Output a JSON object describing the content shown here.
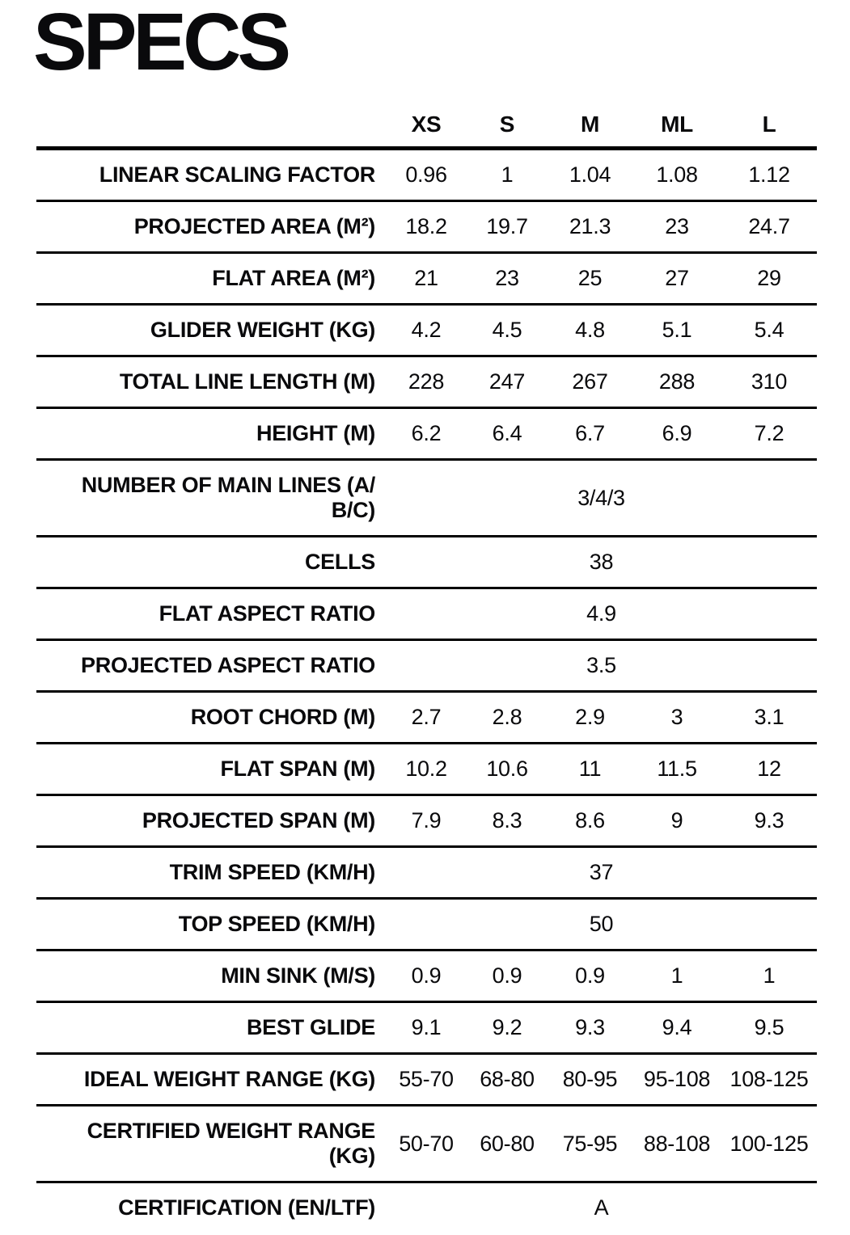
{
  "title": "SPECS",
  "colors": {
    "text": "#0a0a0c",
    "rule": "#000000",
    "background": "#ffffff"
  },
  "table": {
    "columns": [
      "XS",
      "S",
      "M",
      "ML",
      "L"
    ],
    "rows": [
      {
        "label": "LINEAR SCALING FACTOR",
        "values": [
          "0.96",
          "1",
          "1.04",
          "1.08",
          "1.12"
        ]
      },
      {
        "label": "PROJECTED AREA (M²)",
        "values": [
          "18.2",
          "19.7",
          "21.3",
          "23",
          "24.7"
        ]
      },
      {
        "label": "FLAT AREA (M²)",
        "values": [
          "21",
          "23",
          "25",
          "27",
          "29"
        ]
      },
      {
        "label": "GLIDER WEIGHT (KG)",
        "values": [
          "4.2",
          "4.5",
          "4.8",
          "5.1",
          "5.4"
        ]
      },
      {
        "label": "TOTAL LINE LENGTH (M)",
        "values": [
          "228",
          "247",
          "267",
          "288",
          "310"
        ]
      },
      {
        "label": "HEIGHT (M)",
        "values": [
          "6.2",
          "6.4",
          "6.7",
          "6.9",
          "7.2"
        ]
      },
      {
        "label": "NUMBER OF MAIN LINES (A/\nB/C)",
        "span_value": "3/4/3"
      },
      {
        "label": "CELLS",
        "span_value": "38"
      },
      {
        "label": "FLAT ASPECT RATIO",
        "span_value": "4.9"
      },
      {
        "label": "PROJECTED ASPECT RATIO",
        "span_value": "3.5"
      },
      {
        "label": "ROOT CHORD (M)",
        "values": [
          "2.7",
          "2.8",
          "2.9",
          "3",
          "3.1"
        ]
      },
      {
        "label": "FLAT SPAN (M)",
        "values": [
          "10.2",
          "10.6",
          "11",
          "11.5",
          "12"
        ]
      },
      {
        "label": "PROJECTED SPAN (M)",
        "values": [
          "7.9",
          "8.3",
          "8.6",
          "9",
          "9.3"
        ]
      },
      {
        "label": "TRIM SPEED (KM/H)",
        "span_value": "37"
      },
      {
        "label": "TOP SPEED (KM/H)",
        "span_value": "50"
      },
      {
        "label": "MIN SINK (M/S)",
        "values": [
          "0.9",
          "0.9",
          "0.9",
          "1",
          "1"
        ]
      },
      {
        "label": "BEST GLIDE",
        "values": [
          "9.1",
          "9.2",
          "9.3",
          "9.4",
          "9.5"
        ]
      },
      {
        "label": "IDEAL WEIGHT RANGE (KG)",
        "values": [
          "55-70",
          "68-80",
          "80-95",
          "95-108",
          "108-125"
        ]
      },
      {
        "label": "CERTIFIED WEIGHT RANGE\n(KG)",
        "values": [
          "50-70",
          "60-80",
          "75-95",
          "88-108",
          "100-125"
        ]
      },
      {
        "label": "CERTIFICATION (EN/LTF)",
        "span_value": "A"
      }
    ]
  }
}
